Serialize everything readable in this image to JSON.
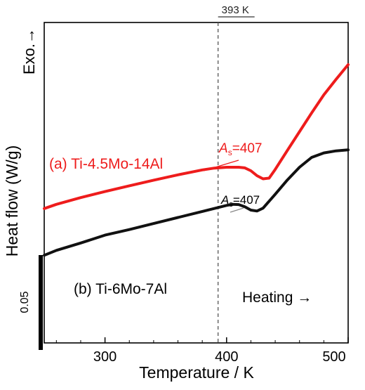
{
  "chart_data": {
    "type": "line",
    "xlabel": "Temperature / K",
    "ylabel": "Heat flow (W/g)",
    "exo_label": "Exo.→",
    "xlim": [
      250,
      500
    ],
    "ylim": [
      0,
      1
    ],
    "xticks": [
      300,
      400,
      500
    ],
    "grid": false,
    "reference_line": {
      "x": 393,
      "label": "393 K"
    },
    "scale_bar": {
      "label": "0.05",
      "value": 0.05
    },
    "direction_label": "Heating →",
    "series": [
      {
        "name": "(a) Ti-4.5Mo-14Al",
        "color": "#ee1c1c",
        "as_label": "=407",
        "as_sub": "s",
        "as_prefix": "A",
        "x": [
          250,
          260,
          280,
          300,
          320,
          340,
          360,
          380,
          390,
          400,
          410,
          415,
          420,
          425,
          430,
          435,
          440,
          450,
          460,
          470,
          480,
          490,
          500
        ],
        "y": [
          0.356,
          0.375,
          0.405,
          0.432,
          0.458,
          0.483,
          0.507,
          0.529,
          0.537,
          0.541,
          0.541,
          0.538,
          0.525,
          0.503,
          0.489,
          0.492,
          0.531,
          0.616,
          0.7,
          0.784,
          0.865,
          0.934,
          1.0
        ]
      },
      {
        "name": "(b) Ti-6Mo-7Al",
        "color": "#111111",
        "as_label": "=407",
        "as_sub": "s",
        "as_prefix": "A",
        "x": [
          250,
          260,
          280,
          300,
          320,
          340,
          360,
          380,
          400,
          405,
          410,
          415,
          420,
          425,
          430,
          440,
          450,
          460,
          470,
          480,
          490,
          500
        ],
        "y": [
          0.147,
          0.169,
          0.202,
          0.237,
          0.262,
          0.289,
          0.316,
          0.343,
          0.37,
          0.375,
          0.374,
          0.364,
          0.349,
          0.345,
          0.358,
          0.42,
          0.484,
          0.541,
          0.585,
          0.605,
          0.614,
          0.619
        ]
      }
    ]
  }
}
